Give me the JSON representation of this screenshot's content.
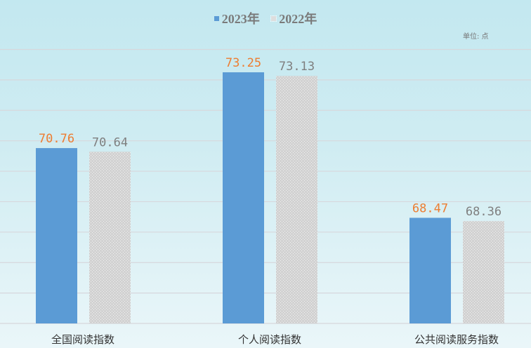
{
  "chart_data": {
    "type": "bar",
    "categories": [
      "全国阅读指数",
      "个人阅读指数",
      "公共阅读服务指数"
    ],
    "series": [
      {
        "name": "2023年",
        "values": [
          70.76,
          73.25,
          68.47
        ],
        "color": "#5b9bd5",
        "label_color": "#ed7d31"
      },
      {
        "name": "2022年",
        "values": [
          70.64,
          73.13,
          68.36
        ],
        "color": "#d4d4d4",
        "label_color": "#7f7f7f"
      }
    ],
    "unit": "单位: 点",
    "ylim": [
      65,
      74
    ],
    "grid": true,
    "legend": "top"
  }
}
